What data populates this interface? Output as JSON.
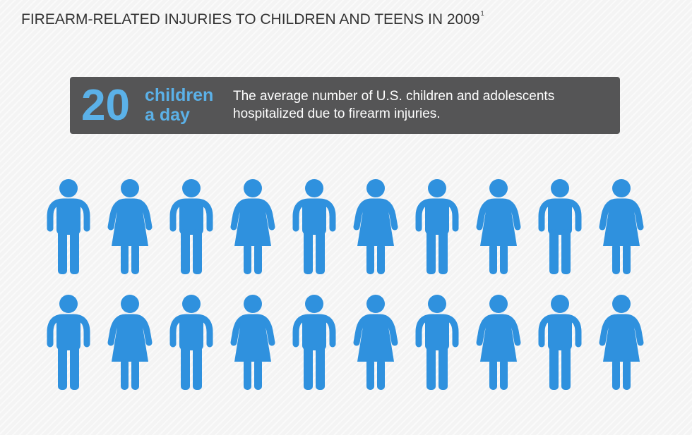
{
  "title": "FIREARM-RELATED INJURIES TO CHILDREN AND TEENS IN 2009",
  "title_footnote": "1",
  "stat": {
    "number": "20",
    "unit_line1": "children",
    "unit_line2": "a day",
    "description": "The average number of U.S. children and adolescents hospitalized due to firearm injuries."
  },
  "figures": {
    "count": 20,
    "pattern": [
      "boy",
      "girl"
    ],
    "color": "#2f91de"
  },
  "colors": {
    "banner": "#555556",
    "accent": "#5bb1e8",
    "figure": "#2f91de"
  }
}
